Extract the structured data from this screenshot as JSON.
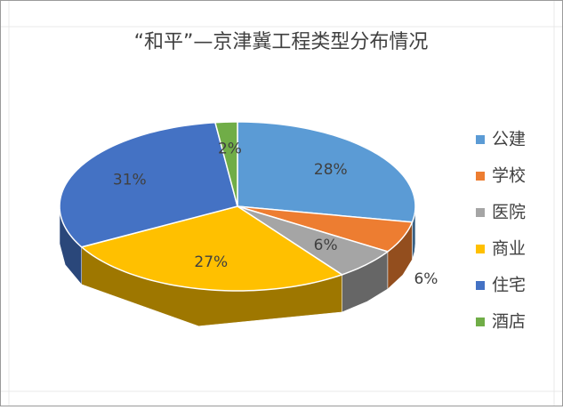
{
  "chart_data": {
    "type": "pie",
    "title": "“和平”—京津冀工程类型分布情况",
    "categories": [
      "公建",
      "学校",
      "医院",
      "商业",
      "住宅",
      "酒店"
    ],
    "values": [
      28,
      6,
      6,
      27,
      31,
      2
    ],
    "value_labels": [
      "28%",
      "6%",
      "6%",
      "27%",
      "31%",
      "2%"
    ],
    "colors": [
      "#5b9bd5",
      "#ed7d31",
      "#a5a5a5",
      "#ffc000",
      "#4472c4",
      "#70ad47"
    ],
    "legend": "right"
  }
}
